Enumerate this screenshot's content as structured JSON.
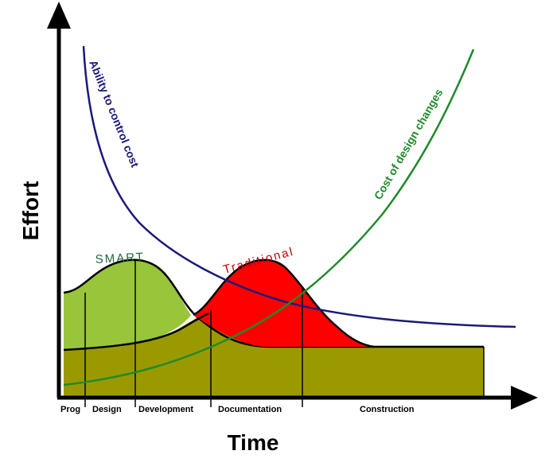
{
  "axes": {
    "y_label": "Effort",
    "x_label": "Time"
  },
  "phases": [
    {
      "id": "prog",
      "label": "Prog"
    },
    {
      "id": "design",
      "label": "Design"
    },
    {
      "id": "development",
      "label": "Development"
    },
    {
      "id": "documentation",
      "label": "Documentation"
    },
    {
      "id": "construction",
      "label": "Construction"
    }
  ],
  "curves": {
    "ability_to_control_cost": {
      "label": "Ability to control cost",
      "color": "#1a1a7a"
    },
    "cost_of_design_changes": {
      "label": "Cost of design changes",
      "color": "#1f8a2a"
    }
  },
  "bells": {
    "smart": {
      "label": "SMART",
      "color": "#98c53a",
      "label_color": "#1f6b3a"
    },
    "traditional": {
      "label": "Traditional",
      "color": "#ff0000",
      "label_color": "#c00000"
    }
  },
  "base_color": "#9a9a00"
}
